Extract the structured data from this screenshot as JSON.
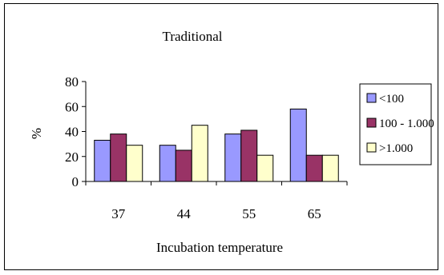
{
  "chart_data": {
    "type": "bar",
    "title": "Traditional",
    "xlabel": "Incubation temperature",
    "ylabel": "%",
    "categories": [
      "37",
      "44",
      "55",
      "65"
    ],
    "ylim": [
      0,
      80
    ],
    "yticks": [
      0,
      20,
      40,
      60,
      80
    ],
    "grid": false,
    "legend_position": "right",
    "series": [
      {
        "name": "<100",
        "color": "#9999ff",
        "values": [
          33,
          29,
          38,
          58
        ]
      },
      {
        "name": "100 - 1.000",
        "color": "#993366",
        "values": [
          38,
          25,
          41,
          21
        ]
      },
      {
        "name": ">1.000",
        "color": "#ffffcc",
        "values": [
          29,
          45,
          21,
          21
        ]
      }
    ]
  }
}
